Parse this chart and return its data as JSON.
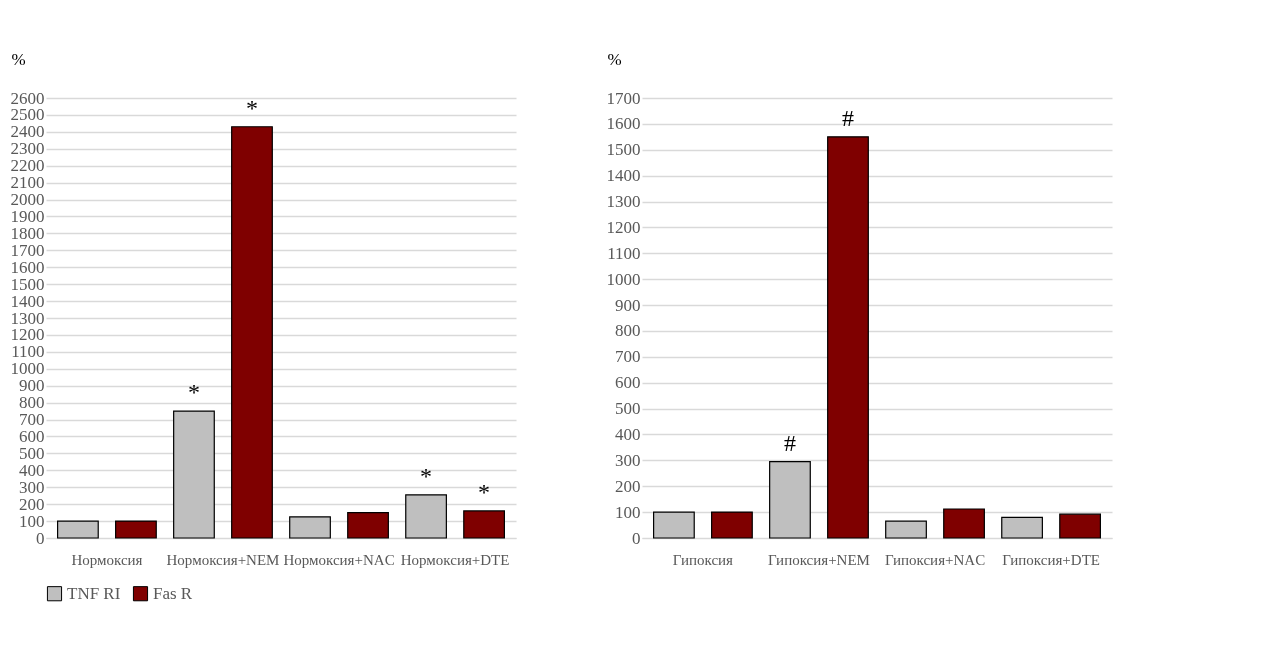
{
  "chart_data": [
    {
      "type": "bar",
      "categories": [
        "Нормоксия",
        "Нормоксия+NEM",
        "Нормоксия+NAC",
        "Нормоксия+DTE"
      ],
      "ylabel": "%",
      "ylim": [
        0,
        2600
      ],
      "yticks": [
        0,
        100,
        200,
        300,
        400,
        500,
        600,
        700,
        800,
        900,
        1000,
        1100,
        1200,
        1300,
        1400,
        1500,
        1600,
        1700,
        1800,
        1900,
        2000,
        2100,
        2200,
        2300,
        2400,
        2500,
        2600
      ],
      "grid": "y",
      "legend": "bottom",
      "series": [
        {
          "name": "TNF RI",
          "color": "#bfbfbf",
          "values": [
            100,
            750,
            125,
            255
          ],
          "value_labels": [
            null,
            "*",
            null,
            "*"
          ]
        },
        {
          "name": "Fas R",
          "color": "#7f0000",
          "values": [
            100,
            2430,
            150,
            160
          ],
          "value_labels": [
            null,
            "*",
            null,
            "*"
          ]
        }
      ]
    },
    {
      "type": "bar",
      "categories": [
        "Гипоксия",
        "Гипоксия+NEM",
        "Гипоксия+NAC",
        "Гипоксия+DTE"
      ],
      "ylabel": "%",
      "ylim": [
        0,
        1700
      ],
      "yticks": [
        0,
        100,
        200,
        300,
        400,
        500,
        600,
        700,
        800,
        900,
        1000,
        1100,
        1200,
        1300,
        1400,
        1500,
        1600,
        1700
      ],
      "grid": "y",
      "legend": "bottom",
      "series": [
        {
          "name": "TNF RI",
          "color": "#bfbfbf",
          "values": [
            100,
            295,
            65,
            80
          ],
          "value_labels": [
            null,
            "#",
            null,
            null
          ]
        },
        {
          "name": "Fas R",
          "color": "#7f0000",
          "values": [
            100,
            1550,
            112,
            92
          ],
          "value_labels": [
            null,
            "#",
            null,
            null
          ]
        }
      ]
    }
  ]
}
